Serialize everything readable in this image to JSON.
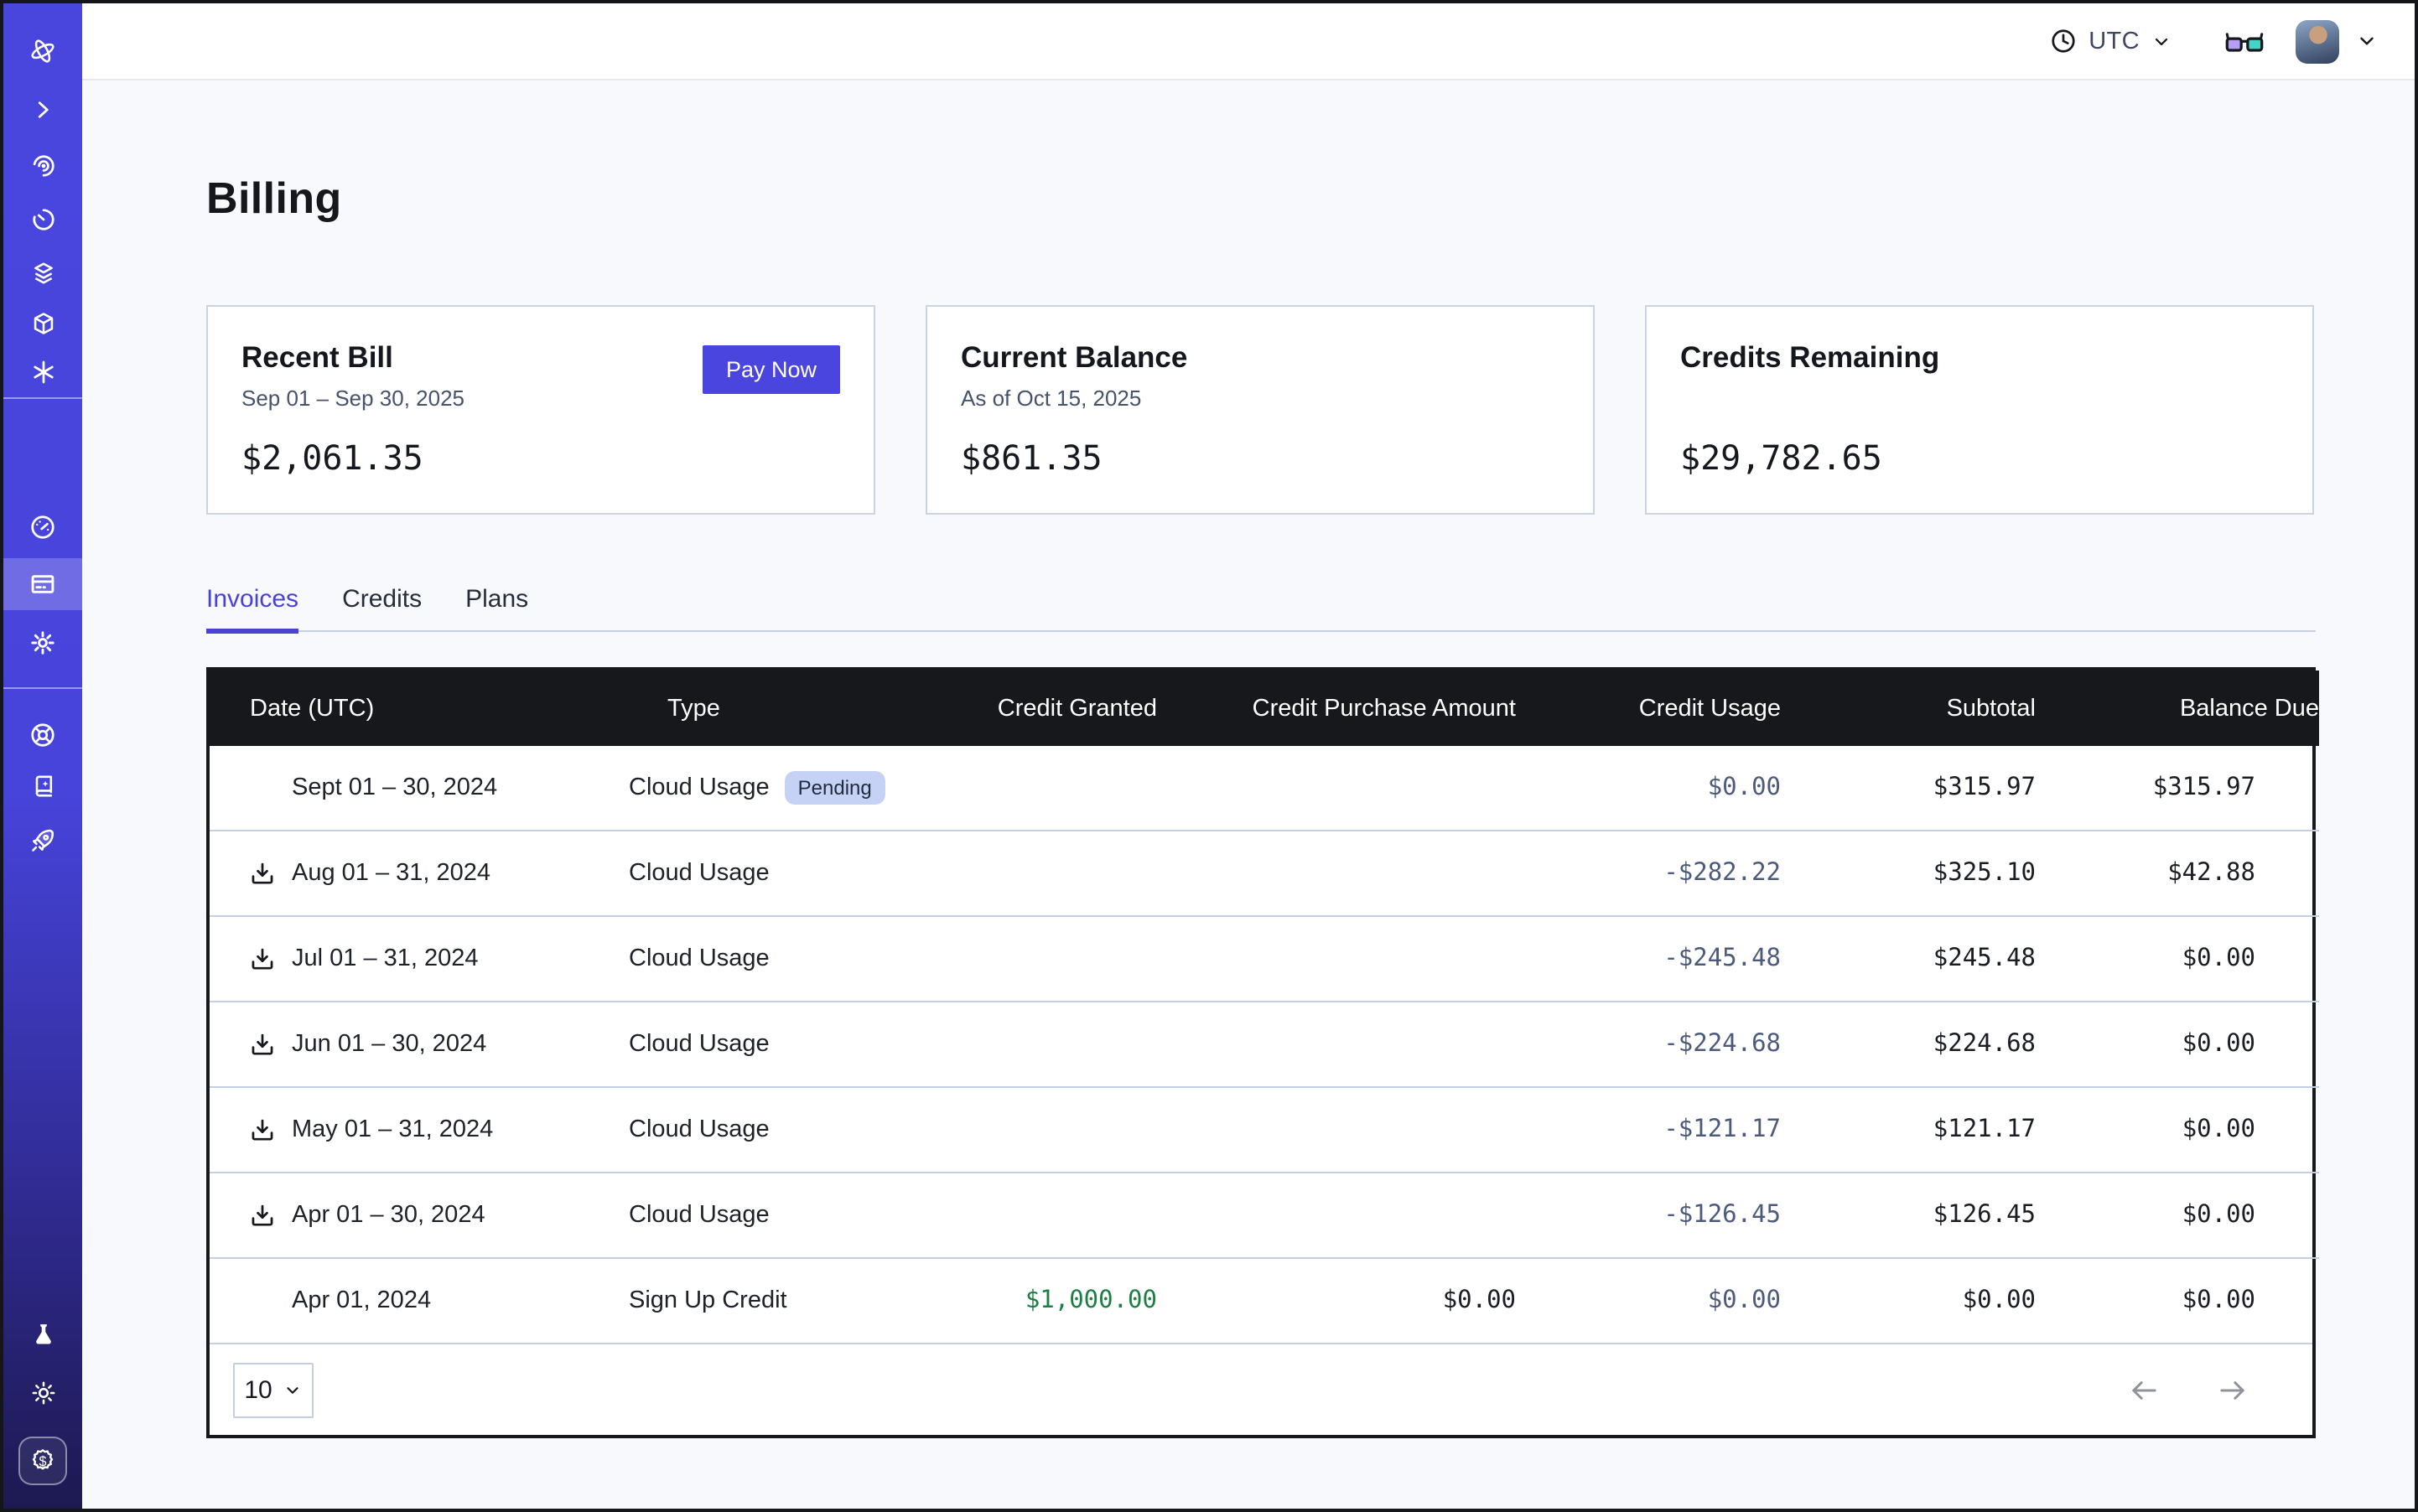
{
  "topbar": {
    "timezone": "UTC",
    "icons": [
      "clock-icon",
      "chevron-down-icon",
      "glasses-icon",
      "avatar",
      "chevron-down-icon"
    ]
  },
  "sidebar": {
    "icons": [
      "orbit-logo",
      "chevron-right",
      "radar",
      "history-timer",
      "layers",
      "cube",
      "asterisk",
      "gauge",
      "billing-card",
      "settings-gear",
      "helm",
      "docs-book",
      "rocket",
      "flask",
      "sun",
      "dollar-badge"
    ],
    "active_item": "billing-card"
  },
  "page": {
    "title": "Billing"
  },
  "cards": [
    {
      "title": "Recent Bill",
      "subtitle": "Sep 01 – Sep 30, 2025",
      "amount": "$2,061.35",
      "action": "Pay Now"
    },
    {
      "title": "Current Balance",
      "subtitle": "As of Oct 15, 2025",
      "amount": "$861.35"
    },
    {
      "title": "Credits Remaining",
      "subtitle": "",
      "amount": "$29,782.65"
    }
  ],
  "tabs": [
    {
      "label": "Invoices",
      "active": true
    },
    {
      "label": "Credits",
      "active": false
    },
    {
      "label": "Plans",
      "active": false
    }
  ],
  "table": {
    "columns": [
      "Date (UTC)",
      "Type",
      "Credit Granted",
      "Credit Purchase Amount",
      "Credit Usage",
      "Subtotal",
      "Balance Due"
    ],
    "rows": [
      {
        "download": false,
        "date": "Sept 01 – 30, 2024",
        "type": "Cloud Usage",
        "badge": "Pending",
        "granted": "",
        "purchase": "",
        "usage": "$0.00",
        "subtotal": "$315.97",
        "balance": "$315.97"
      },
      {
        "download": true,
        "date": "Aug 01 – 31, 2024",
        "type": "Cloud Usage",
        "badge": "",
        "granted": "",
        "purchase": "",
        "usage": "-$282.22",
        "subtotal": "$325.10",
        "balance": "$42.88"
      },
      {
        "download": true,
        "date": "Jul 01 – 31, 2024",
        "type": "Cloud Usage",
        "badge": "",
        "granted": "",
        "purchase": "",
        "usage": "-$245.48",
        "subtotal": "$245.48",
        "balance": "$0.00"
      },
      {
        "download": true,
        "date": "Jun 01 – 30, 2024",
        "type": "Cloud Usage",
        "badge": "",
        "granted": "",
        "purchase": "",
        "usage": "-$224.68",
        "subtotal": "$224.68",
        "balance": "$0.00"
      },
      {
        "download": true,
        "date": "May 01 – 31, 2024",
        "type": "Cloud Usage",
        "badge": "",
        "granted": "",
        "purchase": "",
        "usage": "-$121.17",
        "subtotal": "$121.17",
        "balance": "$0.00"
      },
      {
        "download": true,
        "date": "Apr 01 – 30, 2024",
        "type": "Cloud Usage",
        "badge": "",
        "granted": "",
        "purchase": "",
        "usage": "-$126.45",
        "subtotal": "$126.45",
        "balance": "$0.00"
      },
      {
        "download": false,
        "date": "Apr 01, 2024",
        "type": "Sign Up Credit",
        "badge": "",
        "granted": "$1,000.00",
        "granted_green": true,
        "purchase": "$0.00",
        "usage": "$0.00",
        "subtotal": "$0.00",
        "balance": "$0.00"
      }
    ],
    "pagination": {
      "page_size": "10"
    }
  },
  "colors": {
    "accent": "#4a45de",
    "sidebar_top": "#4946de",
    "sidebar_bottom": "#1d1950",
    "table_header_bg": "#17181c",
    "usage_text": "#4c5b7c",
    "credit_green": "#1b8044",
    "pending_badge_bg": "#c5d2f6",
    "page_bg": "#f7f9fc"
  }
}
